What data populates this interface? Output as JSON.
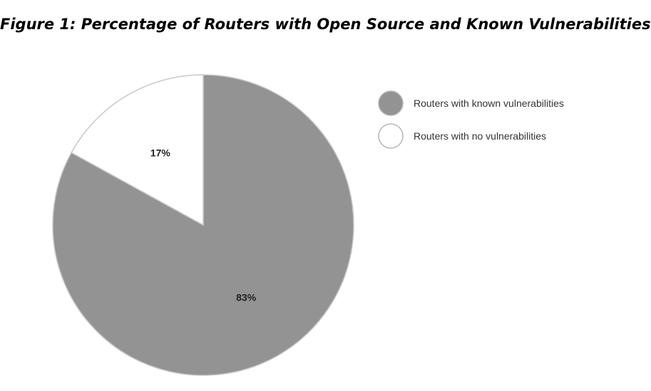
{
  "chart_data": {
    "type": "pie",
    "title": "Figure 1: Percentage of Routers with Open Source and Known Vulnerabilities",
    "start_angle_deg": 0,
    "direction": "clockwise",
    "legend_position": "right",
    "slices": [
      {
        "name": "Routers with known vulnerabilities",
        "value": 83,
        "label": "83%",
        "color": "#939393"
      },
      {
        "name": "Routers with no vulnerabilities",
        "value": 17,
        "label": "17%",
        "color": "#ffffff"
      }
    ],
    "slice_stroke_color": "#c8c8c8",
    "legend_marker_stroke": "#b5b5b5"
  }
}
